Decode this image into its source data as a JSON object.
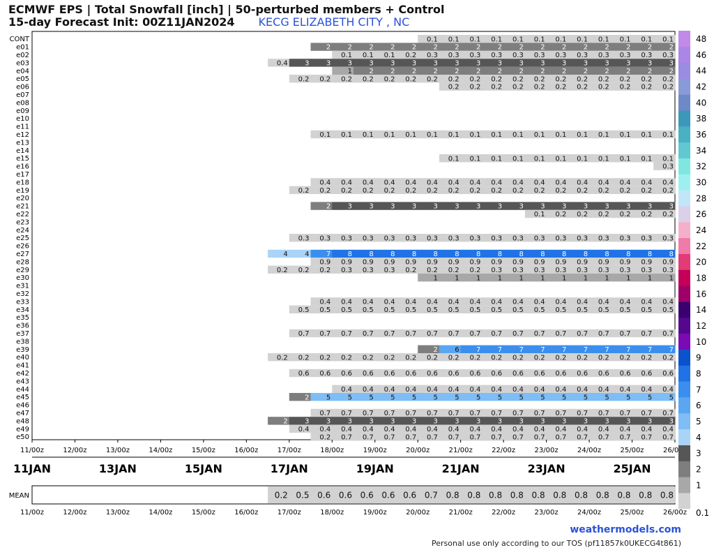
{
  "title_line1": "ECMWF EPS | Total Snowfall [inch] | 50-perturbed members + Control",
  "title_line2": "15-day Forecast Init: 00Z11JAN2024",
  "location": "KECG ELIZABETH CITY , NC",
  "brand": "weathermodels.com",
  "tos": "Personal use only according to our TOS (pf11857k0UKECG4t861)",
  "mean_label": "MEAN",
  "chart_data": {
    "type": "heatmap",
    "x_start": "11/00z",
    "x_end": "26/00z",
    "time_step_hours": 12,
    "time_ticks": [
      "11/00z",
      "12/00z",
      "13/00z",
      "14/00z",
      "15/00z",
      "16/00z",
      "17/00z",
      "18/00z",
      "19/00z",
      "20/00z",
      "21/00z",
      "22/00z",
      "23/00z",
      "24/00z",
      "25/00z",
      "26/00z"
    ],
    "date_labels": [
      "11JAN",
      "13JAN",
      "15JAN",
      "17JAN",
      "19JAN",
      "21JAN",
      "23JAN",
      "25JAN"
    ],
    "members": [
      "CONT",
      "e01",
      "e02",
      "e03",
      "e04",
      "e05",
      "e06",
      "e07",
      "e08",
      "e09",
      "e10",
      "e11",
      "e12",
      "e13",
      "e14",
      "e15",
      "e16",
      "e17",
      "e18",
      "e19",
      "e20",
      "e21",
      "e22",
      "e23",
      "e24",
      "e25",
      "e26",
      "e27",
      "e28",
      "e29",
      "e30",
      "e31",
      "e32",
      "e33",
      "e34",
      "e35",
      "e36",
      "e37",
      "e38",
      "e39",
      "e40",
      "e41",
      "e42",
      "e43",
      "e44",
      "e45",
      "e46",
      "e47",
      "e48",
      "e49",
      "e50"
    ],
    "rows": {
      "CONT": [
        [
          18,
          "0.1"
        ]
      ],
      "e01": [
        [
          13,
          "2"
        ],
        [
          21,
          "2"
        ]
      ],
      "e02": [
        [
          14,
          "0.1"
        ],
        [
          15,
          "0.1"
        ],
        [
          16,
          "0.1"
        ],
        [
          17,
          "0.2"
        ],
        [
          18,
          "0.3"
        ]
      ],
      "e03": [
        [
          11,
          "0.4"
        ],
        [
          12,
          "3"
        ]
      ],
      "e04": [
        [
          14,
          "1"
        ],
        [
          15,
          "2"
        ]
      ],
      "e05": [
        [
          12,
          "0.2"
        ]
      ],
      "e06": [
        [
          19,
          "0.2"
        ]
      ],
      "e12": [
        [
          13,
          "0.1"
        ]
      ],
      "e15": [
        [
          19,
          "0.1"
        ]
      ],
      "e16": [
        [
          29,
          "0.3"
        ]
      ],
      "e18": [
        [
          13,
          "0.4"
        ]
      ],
      "e19": [
        [
          12,
          "0.2"
        ]
      ],
      "e21": [
        [
          13,
          "2"
        ],
        [
          14,
          "3"
        ]
      ],
      "e22": [
        [
          23,
          "0.1"
        ],
        [
          24,
          "0.2"
        ]
      ],
      "e25": [
        [
          12,
          "0.3"
        ]
      ],
      "e27": [
        [
          11,
          "4"
        ],
        [
          13,
          "7"
        ],
        [
          14,
          "8"
        ]
      ],
      "e28": [
        [
          13,
          "0.9"
        ]
      ],
      "e29": [
        [
          11,
          "0.2"
        ],
        [
          14,
          "0.3"
        ],
        [
          16,
          "0.3"
        ],
        [
          17,
          "0.2"
        ],
        [
          19,
          "0.2"
        ],
        [
          21,
          "0.3"
        ]
      ],
      "e30": [
        [
          18,
          "1"
        ]
      ],
      "e33": [
        [
          13,
          "0.4"
        ]
      ],
      "e34": [
        [
          12,
          "0.5"
        ]
      ],
      "e37": [
        [
          12,
          "0.7"
        ]
      ],
      "e39": [
        [
          18,
          "2"
        ],
        [
          19,
          "6"
        ],
        [
          20,
          "7"
        ]
      ],
      "e40": [
        [
          11,
          "0.2"
        ]
      ],
      "e42": [
        [
          12,
          "0.6"
        ]
      ],
      "e44": [
        [
          14,
          "0.4"
        ]
      ],
      "e45": [
        [
          12,
          "2"
        ],
        [
          13,
          "5"
        ]
      ],
      "e47": [
        [
          13,
          "0.7"
        ]
      ],
      "e48": [
        [
          11,
          "2"
        ],
        [
          12,
          "3"
        ]
      ],
      "e49": [
        [
          12,
          "0.4"
        ]
      ],
      "e50": [
        [
          13,
          "0.2"
        ],
        [
          14,
          "0.7"
        ]
      ]
    },
    "mean": [
      [
        11,
        "0.2"
      ],
      [
        12,
        "0.5"
      ],
      [
        13,
        "0.6"
      ],
      [
        15,
        "0.6"
      ],
      [
        17,
        "0.6"
      ],
      [
        18,
        "0.7"
      ],
      [
        19,
        "0.8"
      ]
    ],
    "colorbar": {
      "labels": [
        "0.1",
        "1",
        "2",
        "3",
        "4",
        "5",
        "6",
        "7",
        "8",
        "9",
        "10",
        "12",
        "14",
        "16",
        "18",
        "20",
        "22",
        "24",
        "26",
        "28",
        "30",
        "32",
        "34",
        "36",
        "38",
        "40",
        "42",
        "44",
        "46",
        "48"
      ],
      "colors": [
        "#d2d2d2",
        "#a8a8a8",
        "#7e7e7e",
        "#565656",
        "#a9d4f7",
        "#7fbdf6",
        "#5aa6f3",
        "#3a8fee",
        "#1f73e6",
        "#0b53cc",
        "#7a0ab4",
        "#55088e",
        "#3a0070",
        "#9e0068",
        "#c40058",
        "#e33a78",
        "#f07aa8",
        "#f4b0ca",
        "#dcd0e8",
        "#c0e6f8",
        "#9ef0f0",
        "#7ee8e0",
        "#60c8d0",
        "#4ab0c4",
        "#3c98b8",
        "#6e88c8",
        "#8a9ad8",
        "#9a8ce0",
        "#ac86e6",
        "#c18ae8"
      ]
    }
  }
}
